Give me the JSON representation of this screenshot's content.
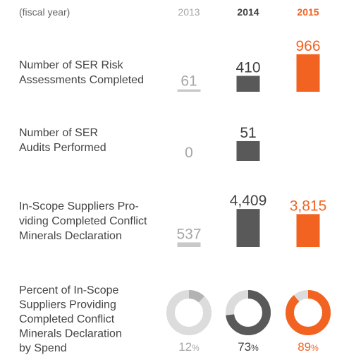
{
  "header": {
    "label": "(fiscal year)",
    "years": [
      "2013",
      "2014",
      "2015"
    ],
    "year_colors": [
      "#a6a6a6",
      "#404040",
      "#f26322"
    ]
  },
  "chart_data": [
    {
      "type": "bar",
      "title": [
        "Number of SER Risk",
        "Assessments Completed"
      ],
      "values": [
        61,
        410,
        966
      ],
      "colors": [
        "#c8c8c8",
        "#595959",
        "#f26322"
      ],
      "label_colors": [
        "#a6a6a6",
        "#404040",
        "#f26322"
      ],
      "ylim": [
        0,
        1000
      ]
    },
    {
      "type": "bar",
      "title": [
        "Number of SER",
        "Audits Performed"
      ],
      "values": [
        0,
        51,
        null
      ],
      "colors": [
        "#c8c8c8",
        "#595959",
        "#f26322"
      ],
      "label_colors": [
        "#a6a6a6",
        "#404040",
        "#f26322"
      ],
      "ylim": [
        0,
        100
      ]
    },
    {
      "type": "bar",
      "title": [
        "In-Scope Suppliers Pro-",
        "viding Completed Conflict",
        "Minerals Declaration"
      ],
      "values": [
        537,
        4409,
        3815
      ],
      "value_labels": [
        "537",
        "4,409",
        "3,815"
      ],
      "colors": [
        "#c8c8c8",
        "#595959",
        "#f26322"
      ],
      "label_colors": [
        "#a6a6a6",
        "#404040",
        "#f26322"
      ],
      "ylim": [
        0,
        4500
      ]
    },
    {
      "type": "donut",
      "title": [
        "Percent of In-Scope",
        "Suppliers Providing",
        "Completed Conflict",
        "Minerals Declaration",
        "by Spend"
      ],
      "values": [
        12,
        73,
        89
      ],
      "unit": "%",
      "colors": [
        "#b3b3b3",
        "#595959",
        "#f26322"
      ],
      "track_color": "#dcdcdc",
      "label_colors": [
        "#a6a6a6",
        "#404040",
        "#f26322"
      ],
      "ylim": [
        0,
        100
      ]
    }
  ]
}
